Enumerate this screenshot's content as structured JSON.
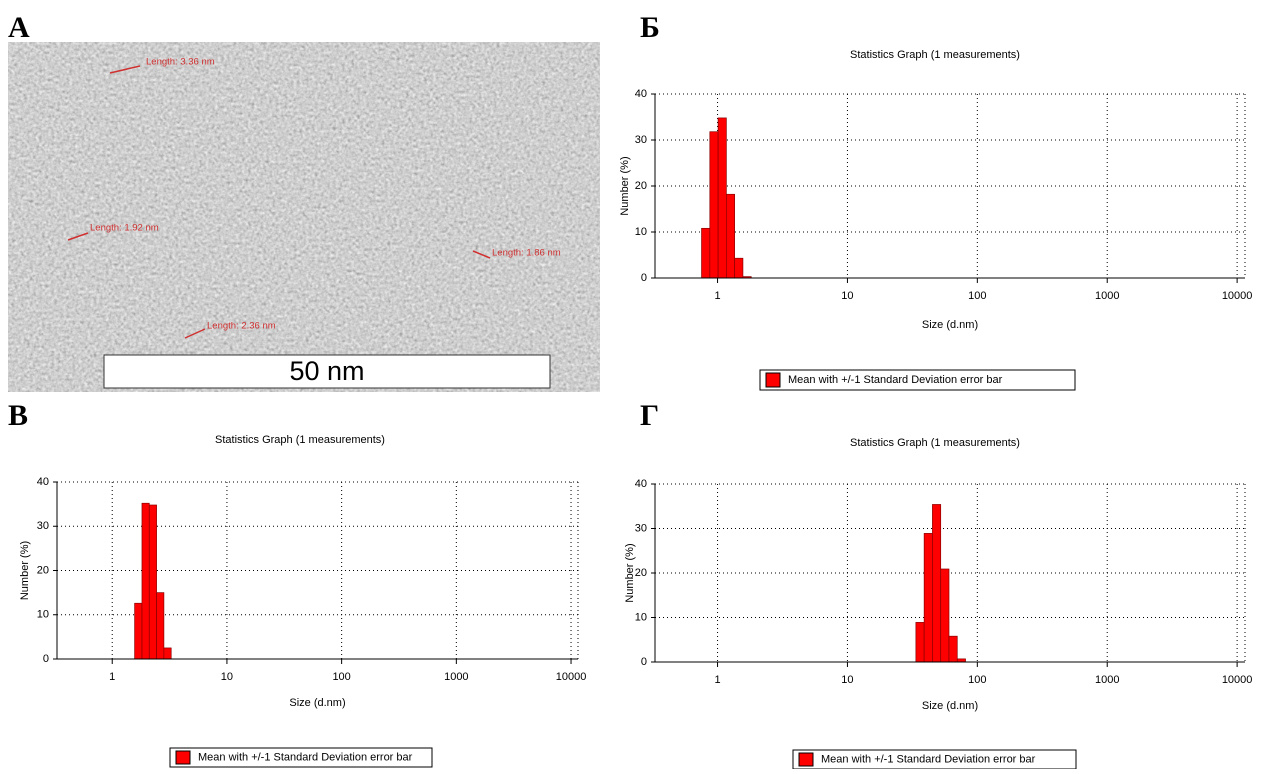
{
  "panel_labels": [
    "А",
    "Б",
    "В",
    "Г"
  ],
  "image": {
    "scale_bar": "50 nm",
    "annotations": [
      "Length: 3.36 nm",
      "Length: 1.92 nm",
      "Length: 1.86 nm",
      "Length: 2.36 nm"
    ]
  },
  "chart_data": [
    {
      "type": "histogram",
      "title": "Statistics Graph (1 measurements)",
      "x_label": "Size (d.nm)",
      "y_label": "Number (%)",
      "x_scale": "log",
      "xlim": [
        0.33,
        11500
      ],
      "xticks": [
        1,
        10,
        100,
        1000,
        10000
      ],
      "ylim": [
        0,
        40
      ],
      "yticks": [
        0,
        10,
        20,
        30,
        40
      ],
      "grid": true,
      "bins": [
        0.7531,
        0.8721,
        1.01,
        1.169,
        1.354,
        1.568,
        1.817
      ],
      "series": [
        {
          "name": "Mean with +/-1 Standard Deviation error bar",
          "color": "#ff0000",
          "values": [
            10.8,
            31.8,
            34.8,
            18.2,
            4.3,
            0.3
          ]
        }
      ]
    },
    {
      "type": "histogram",
      "title": "Statistics Graph (1 measurements)",
      "x_label": "Size (d.nm)",
      "y_label": "Number (%)",
      "x_scale": "log",
      "xlim": [
        0.33,
        11500
      ],
      "xticks": [
        1,
        10,
        100,
        1000,
        10000
      ],
      "ylim": [
        0,
        40
      ],
      "yticks": [
        0,
        10,
        20,
        30,
        40
      ],
      "grid": true,
      "bins": [
        1.568,
        1.817,
        2.103,
        2.436,
        2.821,
        3.267
      ],
      "series": [
        {
          "name": "Mean with +/-1 Standard Deviation error bar",
          "color": "#ff0000",
          "values": [
            12.6,
            35.2,
            34.8,
            15.0,
            2.5
          ]
        }
      ]
    },
    {
      "type": "histogram",
      "title": "Statistics Graph (1 measurements)",
      "x_label": "Size (d.nm)",
      "y_label": "Number (%)",
      "x_scale": "log",
      "xlim": [
        0.33,
        11500
      ],
      "xticks": [
        1,
        10,
        100,
        1000,
        10000
      ],
      "ylim": [
        0,
        40
      ],
      "yticks": [
        0,
        10,
        20,
        30,
        40
      ],
      "grid": true,
      "bins": [
        33.65,
        38.96,
        45.12,
        52.25,
        60.5,
        70.06,
        81.13
      ],
      "series": [
        {
          "name": "Mean with +/-1 Standard Deviation error bar",
          "color": "#ff0000",
          "values": [
            8.9,
            28.9,
            35.4,
            20.9,
            5.8,
            0.7
          ]
        }
      ]
    }
  ]
}
